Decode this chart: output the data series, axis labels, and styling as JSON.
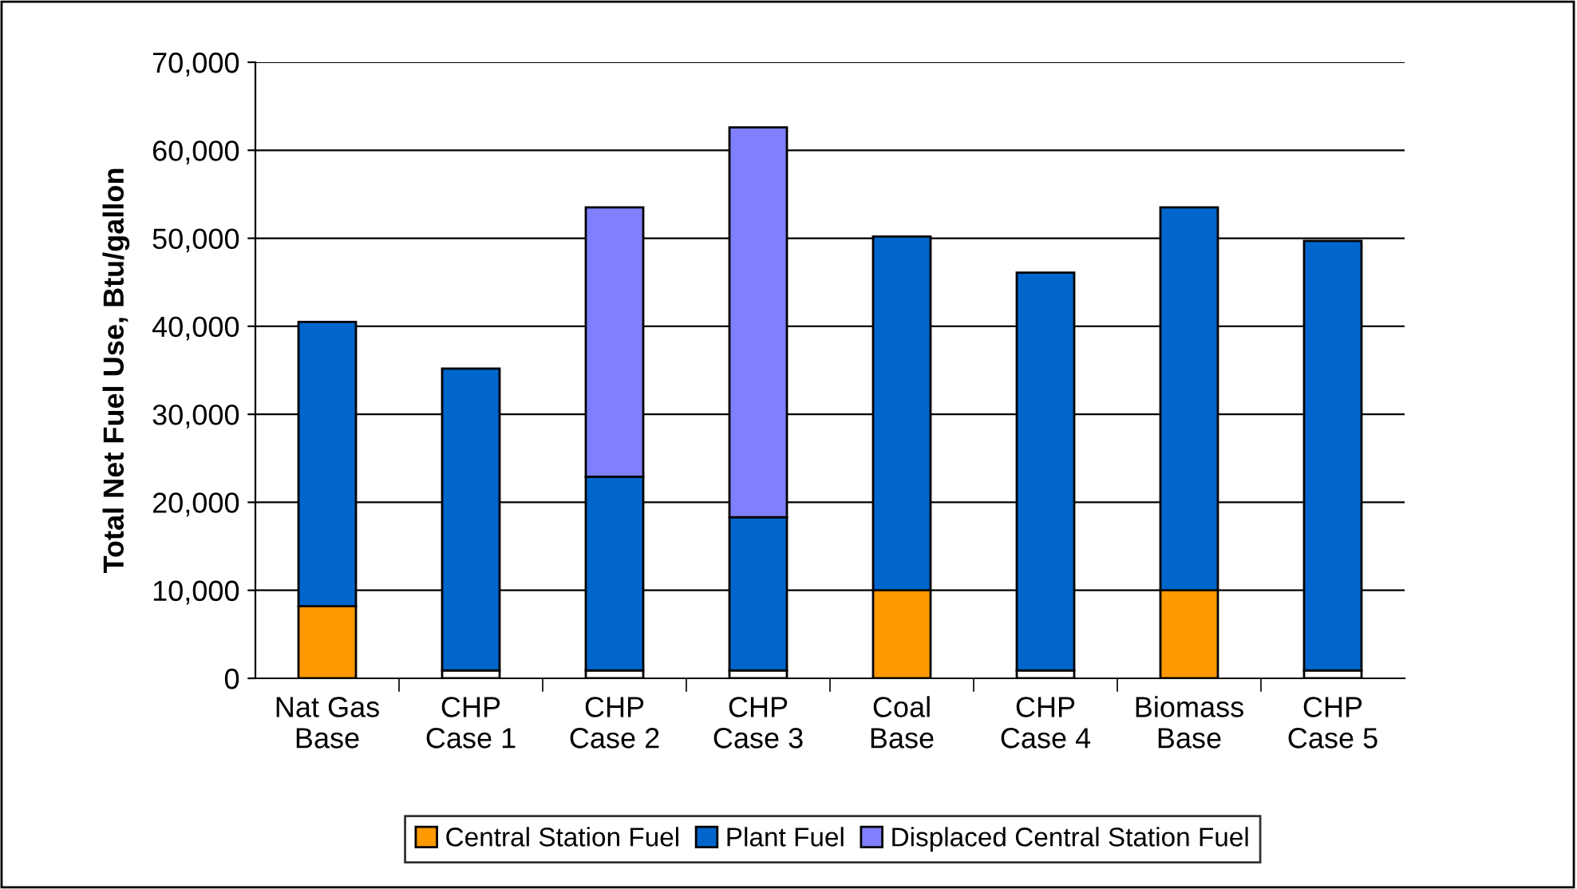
{
  "chart_data": {
    "type": "bar",
    "stacked": true,
    "ylabel": "Total Net Fuel Use, Btu/gallon",
    "categories": [
      "Nat Gas\nBase",
      "CHP\nCase 1",
      "CHP\nCase 2",
      "CHP\nCase 3",
      "Coal\nBase",
      "CHP\nCase 4",
      "Biomass\nBase",
      "CHP\nCase 5"
    ],
    "series": [
      {
        "name": "Central Station Fuel",
        "color": "#ff9900",
        "colors": [
          "#ff9900",
          "#ffffff",
          "#ffffff",
          "#ffffff",
          "#ff9900",
          "#ffffff",
          "#ff9900",
          "#ffffff"
        ],
        "values": [
          8200,
          900,
          900,
          900,
          10000,
          900,
          10000,
          900
        ]
      },
      {
        "name": "Plant Fuel",
        "color": "#0066cc",
        "values": [
          32300,
          34300,
          22000,
          17400,
          40200,
          45200,
          43500,
          48800
        ]
      },
      {
        "name": "Displaced Central Station Fuel",
        "color": "#8080ff",
        "values": [
          null,
          null,
          30600,
          44300,
          null,
          null,
          null,
          null
        ]
      }
    ],
    "ylim": [
      0,
      70000
    ],
    "yticks": [
      {
        "value": 0,
        "label": "0"
      },
      {
        "value": 10000,
        "label": "10,000"
      },
      {
        "value": 20000,
        "label": "20,000"
      },
      {
        "value": 30000,
        "label": "30,000"
      },
      {
        "value": 40000,
        "label": "40,000"
      },
      {
        "value": 50000,
        "label": "50,000"
      },
      {
        "value": 60000,
        "label": "60,000"
      },
      {
        "value": 70000,
        "label": "70,000"
      }
    ],
    "grid": "y",
    "legend": "bottom"
  }
}
